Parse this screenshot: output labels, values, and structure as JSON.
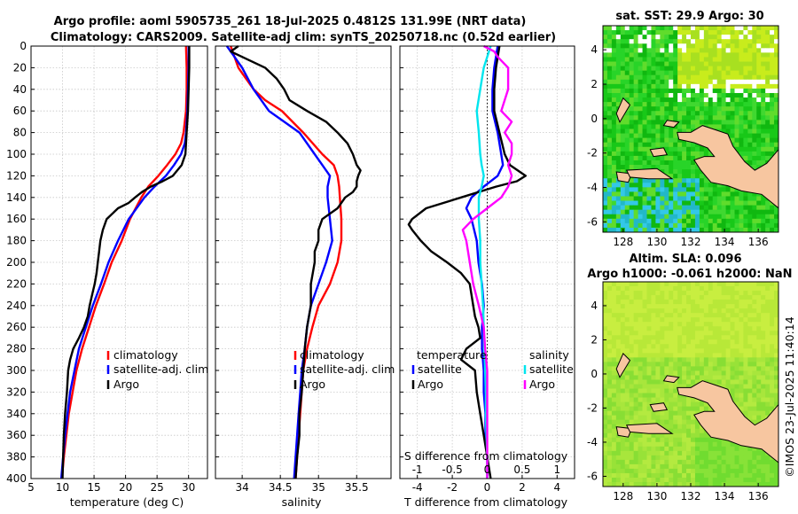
{
  "title_line1": "Argo profile: aoml 5905735_261 18-Jul-2025 0.4812S 131.99E (NRT data)",
  "title_line2": "Climatology: CARS2009. Satellite-adj clim: synTS_20250718.nc (0.52d earlier)",
  "watermark": "©IMOS 23-Jul-2025 11:40:14",
  "colors": {
    "climatology": "#ff0000",
    "satellite": "#0000ff",
    "argo": "#000000",
    "sat_salinity": "#00e5ee",
    "argo_salinity": "#ff00ff",
    "land": "#f7c6a0"
  },
  "depth_ticks": [
    "0",
    "20",
    "40",
    "60",
    "80",
    "100",
    "120",
    "140",
    "160",
    "180",
    "200",
    "220",
    "240",
    "260",
    "280",
    "300",
    "320",
    "340",
    "360",
    "380",
    "400"
  ],
  "chart_data": [
    {
      "type": "line",
      "name": "temperature-profile",
      "xlabel": "temperature (deg C)",
      "ylabel": "depth (dbar)",
      "xlim": [
        5,
        33
      ],
      "ylim": [
        400,
        0
      ],
      "xticks": [
        "5",
        "10",
        "15",
        "20",
        "25",
        "30"
      ],
      "legend": {
        "position": "lower-right",
        "entries": [
          "climatology",
          "satellite-adj. clim",
          "Argo"
        ]
      },
      "series": [
        {
          "name": "climatology",
          "color": "#ff0000",
          "depth": [
            0,
            20,
            40,
            60,
            80,
            90,
            100,
            110,
            120,
            130,
            140,
            160,
            180,
            200,
            220,
            240,
            260,
            280,
            300,
            320,
            340,
            360,
            380,
            400
          ],
          "values": [
            29.6,
            29.7,
            29.7,
            29.6,
            29.2,
            28.8,
            27.9,
            26.6,
            25.2,
            23.6,
            22.5,
            20.7,
            19.4,
            17.8,
            16.6,
            15.3,
            14.2,
            13.1,
            12.2,
            11.6,
            11.0,
            10.6,
            10.2,
            9.9
          ]
        },
        {
          "name": "satellite-adj. clim",
          "color": "#0000ff",
          "depth": [
            0,
            20,
            40,
            60,
            80,
            90,
            100,
            110,
            120,
            130,
            140,
            160,
            180,
            200,
            220,
            240,
            260,
            280,
            300,
            320,
            340,
            360,
            380,
            400
          ],
          "values": [
            30.0,
            30.0,
            29.9,
            29.8,
            29.6,
            29.4,
            28.8,
            27.7,
            26.4,
            24.6,
            23.0,
            20.5,
            18.8,
            17.3,
            16.1,
            14.8,
            13.7,
            12.6,
            11.9,
            11.2,
            10.8,
            10.4,
            10.1,
            9.8
          ]
        },
        {
          "name": "Argo",
          "color": "#000000",
          "depth": [
            0,
            20,
            40,
            60,
            80,
            100,
            110,
            120,
            125,
            130,
            135,
            140,
            145,
            150,
            160,
            170,
            180,
            190,
            200,
            210,
            220,
            230,
            240,
            250,
            260,
            270,
            280,
            290,
            300,
            320,
            340,
            360,
            380,
            400
          ],
          "values": [
            30.1,
            30.1,
            30.0,
            29.9,
            29.7,
            29.5,
            28.9,
            27.5,
            25.9,
            24.0,
            22.6,
            21.5,
            20.5,
            18.8,
            17.0,
            16.4,
            16.0,
            15.8,
            15.6,
            15.4,
            15.1,
            14.7,
            14.3,
            14.0,
            13.4,
            12.6,
            11.7,
            11.2,
            10.9,
            10.7,
            10.4,
            10.2,
            10.1,
            10.0
          ]
        }
      ]
    },
    {
      "type": "line",
      "name": "salinity-profile",
      "xlabel": "salinity",
      "ylabel": "",
      "xlim": [
        33.65,
        35.95
      ],
      "ylim": [
        400,
        0
      ],
      "xticks": [
        "34",
        "34.5",
        "35",
        "35.5"
      ],
      "legend": {
        "position": "lower-right",
        "entries": [
          "climatology",
          "satellite-adj. clim",
          "Argo"
        ]
      },
      "series": [
        {
          "name": "climatology",
          "color": "#ff0000",
          "depth": [
            0,
            20,
            40,
            50,
            60,
            80,
            100,
            110,
            120,
            130,
            140,
            160,
            180,
            200,
            220,
            240,
            260,
            280,
            300,
            320,
            340,
            360,
            380,
            400
          ],
          "values": [
            33.85,
            33.95,
            34.15,
            34.3,
            34.52,
            34.8,
            35.05,
            35.2,
            35.25,
            35.27,
            35.28,
            35.3,
            35.3,
            35.25,
            35.15,
            35.0,
            34.92,
            34.85,
            34.8,
            34.78,
            34.76,
            34.74,
            34.72,
            34.7
          ]
        },
        {
          "name": "satellite-adj. clim",
          "color": "#0000ff",
          "depth": [
            0,
            10,
            20,
            40,
            60,
            70,
            80,
            100,
            110,
            120,
            130,
            140,
            160,
            180,
            200,
            220,
            240,
            260,
            280,
            300,
            320,
            340,
            360,
            380,
            400
          ],
          "values": [
            33.8,
            33.9,
            34.0,
            34.15,
            34.35,
            34.55,
            34.75,
            34.95,
            35.05,
            35.15,
            35.12,
            35.12,
            35.15,
            35.18,
            35.1,
            35.0,
            34.9,
            34.85,
            34.82,
            34.78,
            34.76,
            34.74,
            34.72,
            34.7,
            34.68
          ]
        },
        {
          "name": "Argo",
          "color": "#000000",
          "depth": [
            0,
            5,
            10,
            20,
            30,
            40,
            50,
            60,
            70,
            80,
            90,
            100,
            110,
            115,
            120,
            125,
            130,
            135,
            140,
            150,
            160,
            170,
            180,
            190,
            200,
            220,
            240,
            260,
            280,
            300,
            320,
            340,
            360,
            380,
            400
          ],
          "values": [
            33.95,
            33.85,
            34.0,
            34.3,
            34.45,
            34.55,
            34.62,
            34.85,
            35.1,
            35.25,
            35.38,
            35.45,
            35.5,
            35.55,
            35.52,
            35.5,
            35.5,
            35.45,
            35.35,
            35.25,
            35.05,
            35.0,
            35.0,
            34.95,
            34.95,
            34.9,
            34.9,
            34.85,
            34.82,
            34.8,
            34.78,
            34.75,
            34.75,
            34.72,
            34.7
          ]
        }
      ]
    },
    {
      "type": "line",
      "name": "difference-profile",
      "xlabel": "T difference from climatology",
      "x2label": "S difference from climatology",
      "xlim": [
        -5,
        5
      ],
      "ylim": [
        400,
        0
      ],
      "xticks": [
        "-4",
        "-2",
        "0",
        "2",
        "4"
      ],
      "x2lim": [
        -1.25,
        1.25
      ],
      "x2ticks": [
        "-1",
        "-0.5",
        "0",
        "0.5",
        "1"
      ],
      "legend": {
        "position": "lower-center",
        "temperature_title": "temperature",
        "salinity_title": "salinity",
        "entries": [
          "satellite",
          "Argo"
        ]
      },
      "series": [
        {
          "name": "temperature satellite",
          "color": "#0000ff",
          "depth": [
            0,
            20,
            40,
            60,
            80,
            100,
            110,
            120,
            130,
            140,
            150,
            160,
            180,
            200,
            220,
            240,
            260,
            280,
            300,
            320,
            340,
            360,
            380,
            400
          ],
          "values": [
            0.6,
            0.4,
            0.3,
            0.3,
            0.6,
            0.8,
            0.9,
            0.6,
            -0.2,
            -0.9,
            -1.2,
            -0.9,
            -0.6,
            -0.5,
            -0.3,
            -0.2,
            -0.3,
            -0.3,
            -0.2,
            -0.2,
            -0.1,
            -0.1,
            0.0,
            0.0
          ]
        },
        {
          "name": "temperature Argo",
          "color": "#000000",
          "depth": [
            0,
            20,
            40,
            60,
            80,
            100,
            110,
            120,
            125,
            130,
            140,
            150,
            160,
            165,
            170,
            180,
            190,
            200,
            210,
            220,
            240,
            250,
            260,
            270,
            280,
            290,
            300,
            320,
            340,
            360,
            380,
            400
          ],
          "values": [
            0.7,
            0.5,
            0.4,
            0.4,
            0.7,
            1.0,
            1.3,
            2.2,
            1.7,
            0.5,
            -1.5,
            -3.5,
            -4.3,
            -4.5,
            -4.3,
            -3.8,
            -3.2,
            -2.3,
            -1.5,
            -1.0,
            -0.8,
            -0.7,
            -0.5,
            -0.4,
            -1.2,
            -1.5,
            -0.7,
            -0.6,
            -0.4,
            -0.2,
            0.0,
            0.2
          ]
        },
        {
          "name": "salinity satellite",
          "color": "#00e5ee",
          "depth": [
            0,
            20,
            40,
            60,
            80,
            100,
            110,
            120,
            130,
            140,
            160,
            180,
            200,
            220,
            240,
            260,
            280,
            300,
            320,
            340,
            360,
            380,
            400
          ],
          "values": [
            0.05,
            -0.05,
            -0.1,
            -0.15,
            -0.12,
            -0.1,
            -0.08,
            -0.05,
            -0.08,
            -0.12,
            -0.12,
            -0.1,
            -0.1,
            -0.08,
            -0.06,
            -0.05,
            -0.04,
            -0.03,
            -0.02,
            -0.02,
            -0.01,
            0.0,
            0.0
          ]
        },
        {
          "name": "salinity Argo",
          "color": "#ff00ff",
          "depth": [
            0,
            5,
            10,
            20,
            40,
            60,
            70,
            80,
            90,
            100,
            110,
            120,
            130,
            140,
            150,
            160,
            170,
            180,
            200,
            220,
            240,
            260,
            280,
            300,
            320,
            340,
            360,
            380,
            400
          ],
          "values": [
            -0.05,
            0.1,
            0.15,
            0.3,
            0.3,
            0.2,
            0.35,
            0.25,
            0.35,
            0.35,
            0.3,
            0.35,
            0.3,
            0.2,
            0.0,
            -0.2,
            -0.35,
            -0.3,
            -0.25,
            -0.2,
            -0.12,
            -0.05,
            -0.03,
            0.0,
            0.0,
            0.0,
            0.0,
            0.0,
            0.0
          ]
        }
      ]
    },
    {
      "type": "heatmap",
      "name": "sst-map",
      "title": "sat. SST: 29.9 Argo: 30",
      "xlim": [
        126.8,
        137.2
      ],
      "ylim": [
        -6.6,
        5.4
      ],
      "xticks": [
        "128",
        "130",
        "132",
        "134",
        "136"
      ],
      "yticks": [
        "4",
        "2",
        "0",
        "-2",
        "-4",
        "-6"
      ]
    },
    {
      "type": "heatmap",
      "name": "sla-map",
      "title_line1": "Altim. SLA: 0.096",
      "title_line2": "Argo h1000: -0.061 h2000: NaN",
      "xlim": [
        126.8,
        137.2
      ],
      "ylim": [
        -6.6,
        5.4
      ],
      "xticks": [
        "128",
        "130",
        "132",
        "134",
        "136"
      ],
      "yticks": [
        "4",
        "2",
        "0",
        "-2",
        "-4",
        "-6"
      ]
    }
  ]
}
